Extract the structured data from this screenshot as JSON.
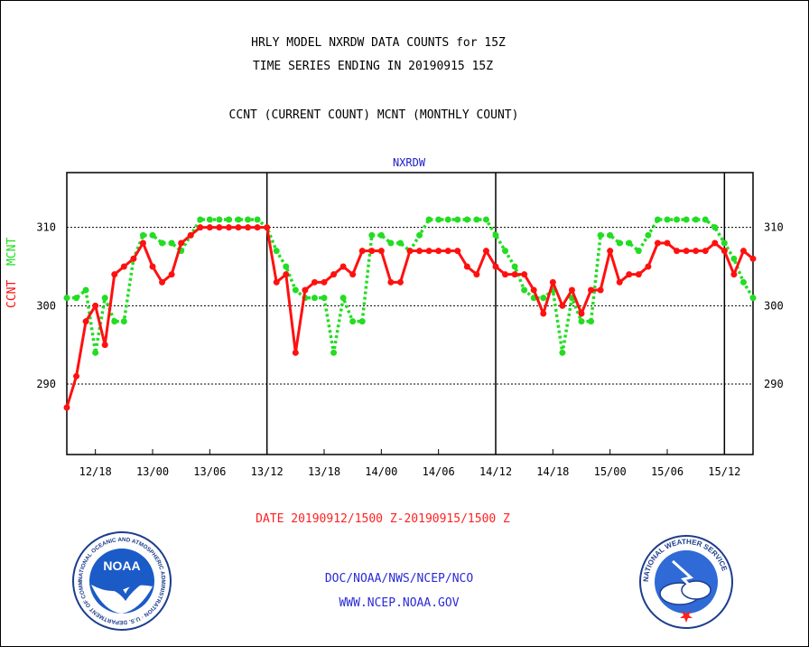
{
  "header": {
    "title_line1": "HRLY MODEL NXRDW DATA COUNTS for 15Z",
    "title_line2": "TIME SERIES ENDING IN 20190915 15Z",
    "subtitle": "CCNT (CURRENT COUNT) MCNT (MONTHLY COUNT)"
  },
  "footer": {
    "date_range": "DATE 20190912/1500 Z-20190915/1500 Z",
    "credit_line1": "DOC/NOAA/NWS/NCEP/NCO",
    "credit_line2": "WWW.NCEP.NOAA.GOV"
  },
  "logos": {
    "noaa": "NOAA",
    "noaa_ring": "NATIONAL OCEANIC AND ATMOSPHERIC ADMINISTRATION · U.S. DEPARTMENT OF COMMERCE",
    "nws_ring": "NATIONAL WEATHER SERVICE"
  },
  "chart_data": {
    "type": "line",
    "title": "NXRDW",
    "ylabel_parts": [
      "CCNT",
      "MCNT"
    ],
    "ylim": [
      281,
      317
    ],
    "yticks": [
      290,
      300,
      310
    ],
    "x_ticks": [
      {
        "label": "12/18",
        "hour": 3
      },
      {
        "label": "13/00",
        "hour": 9
      },
      {
        "label": "13/06",
        "hour": 15
      },
      {
        "label": "13/12",
        "hour": 21
      },
      {
        "label": "13/18",
        "hour": 27
      },
      {
        "label": "14/00",
        "hour": 33
      },
      {
        "label": "14/06",
        "hour": 39
      },
      {
        "label": "14/12",
        "hour": 45
      },
      {
        "label": "14/18",
        "hour": 51
      },
      {
        "label": "15/00",
        "hour": 57
      },
      {
        "label": "15/06",
        "hour": 63
      },
      {
        "label": "15/12",
        "hour": 69
      }
    ],
    "xlim": [
      0,
      72
    ],
    "day_separators_hour": [
      21,
      45,
      69
    ],
    "grid_y": true,
    "series": [
      {
        "name": "CCNT",
        "color": "#ff1010",
        "style": "solid",
        "values": [
          287,
          291,
          298,
          300,
          295,
          304,
          305,
          306,
          308,
          305,
          303,
          304,
          308,
          309,
          310,
          310,
          310,
          310,
          310,
          310,
          310,
          310,
          303,
          304,
          294,
          302,
          303,
          303,
          304,
          305,
          304,
          307,
          307,
          307,
          303,
          303,
          307,
          307,
          307,
          307,
          307,
          307,
          305,
          304,
          307,
          305,
          304,
          304,
          304,
          302,
          299,
          303,
          300,
          302,
          299,
          302,
          302,
          307,
          303,
          304,
          304,
          305,
          308,
          308,
          307,
          307,
          307,
          307,
          308,
          307,
          304,
          307,
          306
        ]
      },
      {
        "name": "MCNT",
        "color": "#22dd22",
        "style": "dotted",
        "values": [
          301,
          301,
          302,
          294,
          301,
          298,
          298,
          306,
          309,
          309,
          308,
          308,
          307,
          309,
          311,
          311,
          311,
          311,
          311,
          311,
          311,
          310,
          307,
          305,
          302,
          301,
          301,
          301,
          294,
          301,
          298,
          298,
          309,
          309,
          308,
          308,
          307,
          309,
          311,
          311,
          311,
          311,
          311,
          311,
          311,
          309,
          307,
          305,
          302,
          301,
          301,
          302,
          294,
          301,
          298,
          298,
          309,
          309,
          308,
          308,
          307,
          309,
          311,
          311,
          311,
          311,
          311,
          311,
          310,
          308,
          306,
          303,
          301
        ]
      }
    ]
  }
}
